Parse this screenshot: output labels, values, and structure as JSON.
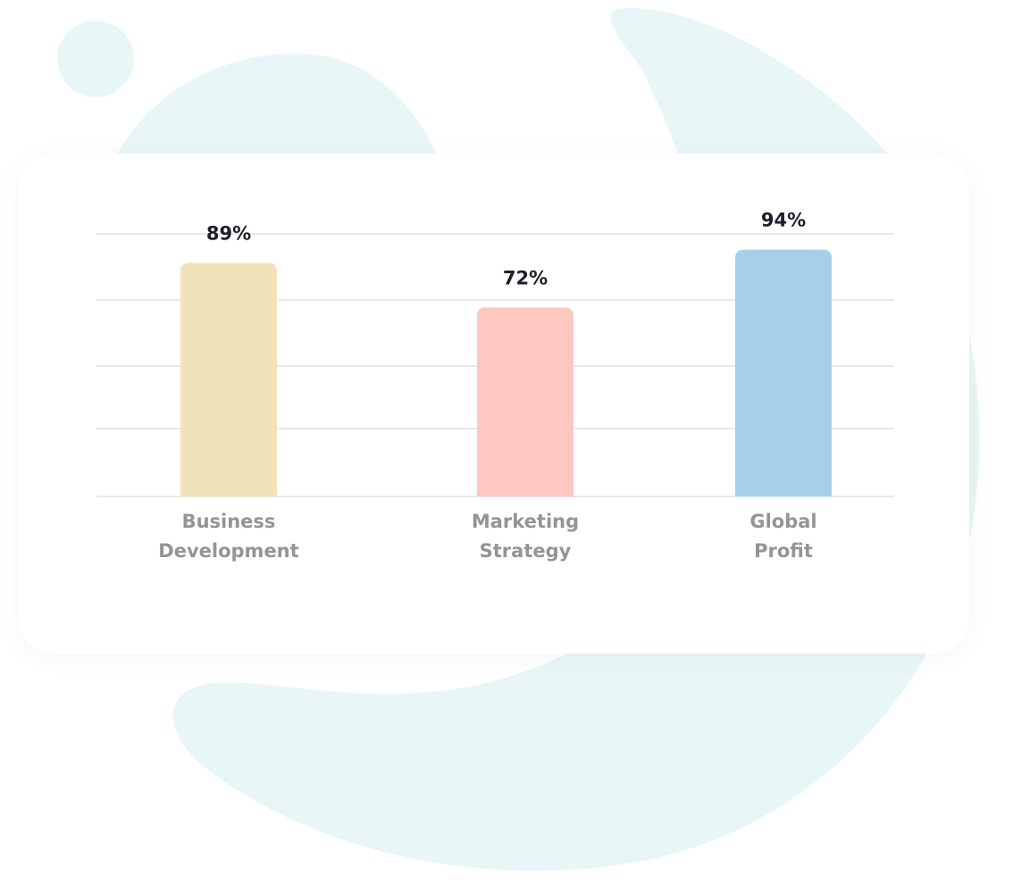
{
  "chart_data": {
    "type": "bar",
    "categories": [
      [
        "Business",
        "Development"
      ],
      [
        "Marketing",
        "Strategy"
      ],
      [
        "Global",
        "Profit"
      ]
    ],
    "values": [
      89,
      72,
      94
    ],
    "value_labels": [
      "89%",
      "72%",
      "94%"
    ],
    "ylim": [
      0,
      100
    ],
    "grid": true,
    "title": "",
    "xlabel": "",
    "ylabel": ""
  },
  "colors": {
    "bars": [
      "#f2e2bb",
      "#fdc8c0",
      "#a7cfea"
    ],
    "gridline": "#e2e2e2",
    "background_shapes": "#e9f6f8",
    "card": "#ffffff"
  }
}
